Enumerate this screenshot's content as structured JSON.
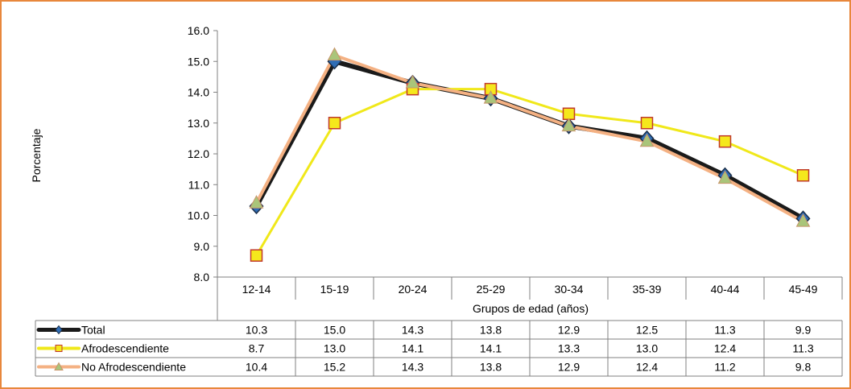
{
  "chart_data": {
    "type": "line",
    "title": "",
    "xlabel": "Grupos de edad (años)",
    "ylabel": "Porcentaje",
    "ylim": [
      8.0,
      16.0
    ],
    "yticks": [
      "8.0",
      "9.0",
      "10.0",
      "11.0",
      "12.0",
      "13.0",
      "14.0",
      "15.0",
      "16.0"
    ],
    "categories": [
      "12-14",
      "15-19",
      "20-24",
      "25-29",
      "30-34",
      "35-39",
      "40-44",
      "45-49"
    ],
    "grid": false,
    "legend": "data-table-bottom",
    "series": [
      {
        "name": "Total",
        "values": [
          10.3,
          15.0,
          14.3,
          13.8,
          12.9,
          12.5,
          11.3,
          9.9
        ],
        "labels": [
          "10.3",
          "15.0",
          "14.3",
          "13.8",
          "12.9",
          "12.5",
          "11.3",
          "9.9"
        ],
        "color": "#1a1a1a",
        "marker": "diamond",
        "marker_fill": "#2f6db5"
      },
      {
        "name": "Afrodescendiente",
        "values": [
          8.7,
          13.0,
          14.1,
          14.1,
          13.3,
          13.0,
          12.4,
          11.3
        ],
        "labels": [
          "8.7",
          "13.0",
          "14.1",
          "14.1",
          "13.3",
          "13.0",
          "12.4",
          "11.3"
        ],
        "color": "#f0e81a",
        "marker": "square",
        "marker_fill": "#f5e81c",
        "marker_stroke": "#c0392b"
      },
      {
        "name": "No Afrodescendiente",
        "values": [
          10.4,
          15.2,
          14.3,
          13.8,
          12.9,
          12.4,
          11.2,
          9.8
        ],
        "labels": [
          "10.4",
          "15.2",
          "14.3",
          "13.8",
          "12.9",
          "12.4",
          "11.2",
          "9.8"
        ],
        "color": "#f4b183",
        "marker": "triangle",
        "marker_fill": "#a9c57a"
      }
    ]
  },
  "colors": {
    "frame_border": "#e8873c",
    "table_border": "#808080"
  }
}
